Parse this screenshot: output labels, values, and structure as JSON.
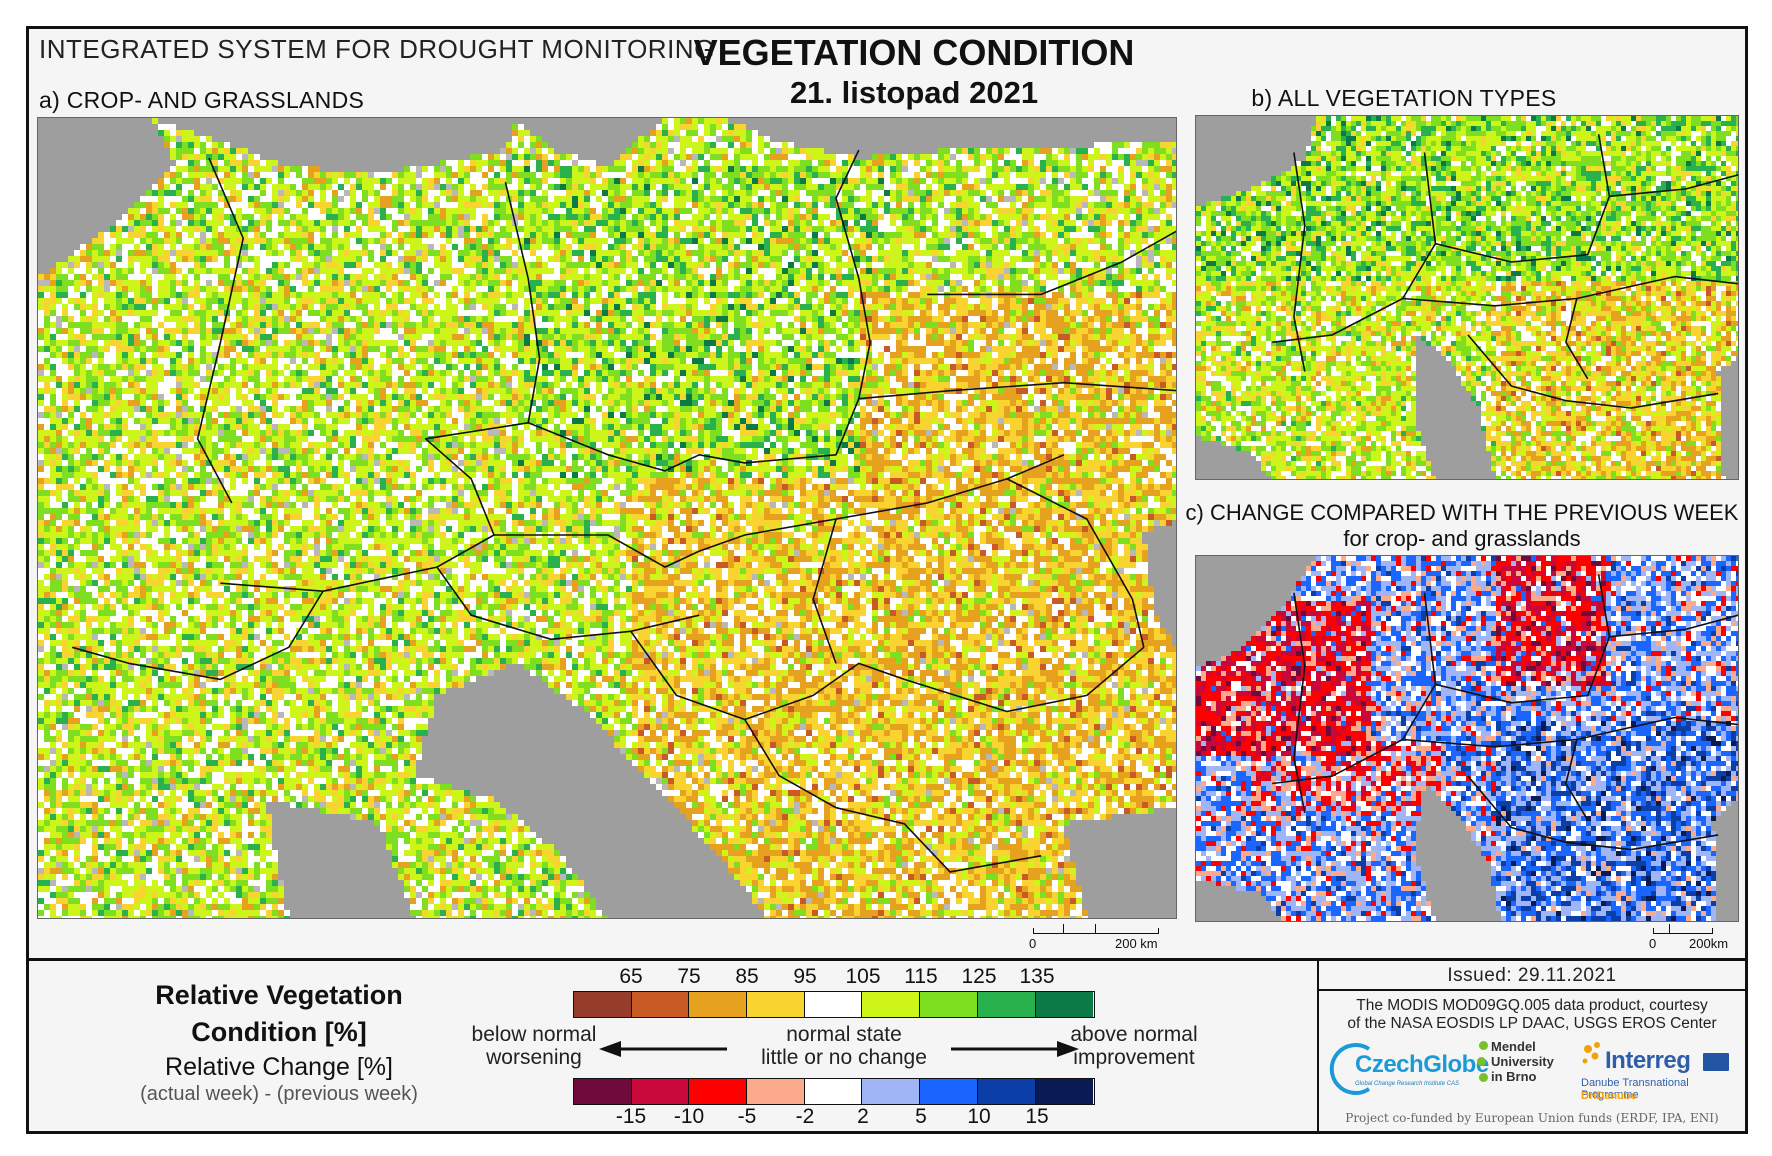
{
  "header": {
    "system_title": "INTEGRATED SYSTEM FOR DROUGHT MONITORING",
    "main_title": "VEGETATION CONDITION",
    "map_date": "21. listopad 2021"
  },
  "panels": {
    "a_title": "a) CROP- AND GRASSLANDS",
    "b_title": "b) ALL VEGETATION TYPES",
    "c_title": "c) CHANGE COMPARED WITH THE PREVIOUS WEEK",
    "c_subtitle": "for crop- and grasslands"
  },
  "scalebars": {
    "a": {
      "zero": "0",
      "distance": "200 km"
    },
    "c": {
      "zero": "0",
      "distance": "200km"
    }
  },
  "legend": {
    "rvc_title": "Relative Vegetation Condition [%]",
    "change_title": "Relative Change [%]",
    "change_formula": "(actual week) - (previous week)",
    "rvc_ticks": [
      "65",
      "75",
      "85",
      "95",
      "105",
      "115",
      "125",
      "135"
    ],
    "rvc_colors": [
      "#953d2a",
      "#c95a26",
      "#e6a11e",
      "#f9d430",
      "#ffffff",
      "#cdf51a",
      "#7ddf1f",
      "#29b14e",
      "#0b7a44"
    ],
    "change_ticks": [
      "-15",
      "-10",
      "-5",
      "-2",
      "2",
      "5",
      "10",
      "15"
    ],
    "change_colors": [
      "#6e0a3c",
      "#c8083a",
      "#ff0000",
      "#fcaa8c",
      "#ffffff",
      "#9fb5f5",
      "#1a66ff",
      "#0c3ea8",
      "#0a1a52"
    ],
    "below_normal": "below normal",
    "worsening": "worsening",
    "normal_state": "normal state",
    "little_change": "little or no change",
    "above_normal": "above normal",
    "improvement": "improvement"
  },
  "credits": {
    "issued": "Issued: 29.11.2021",
    "data_line1": "The MODIS MOD09GQ.005 data product, courtesy",
    "data_line2": "of the NASA EOSDIS LP DAAC, USGS EROS Center",
    "cofunded": "Project co-funded by European Union funds (ERDF, IPA, ENI)",
    "czechglobe": "CzechGlobe",
    "czechglobe_sub": "Global Change Research Institute CAS",
    "mendel_lines": [
      "Mendel",
      "University",
      "in Brno"
    ],
    "interreg": "Interreg",
    "interreg_programme": "Danube Transnational Programme",
    "interreg_project": "DriDanube"
  }
}
